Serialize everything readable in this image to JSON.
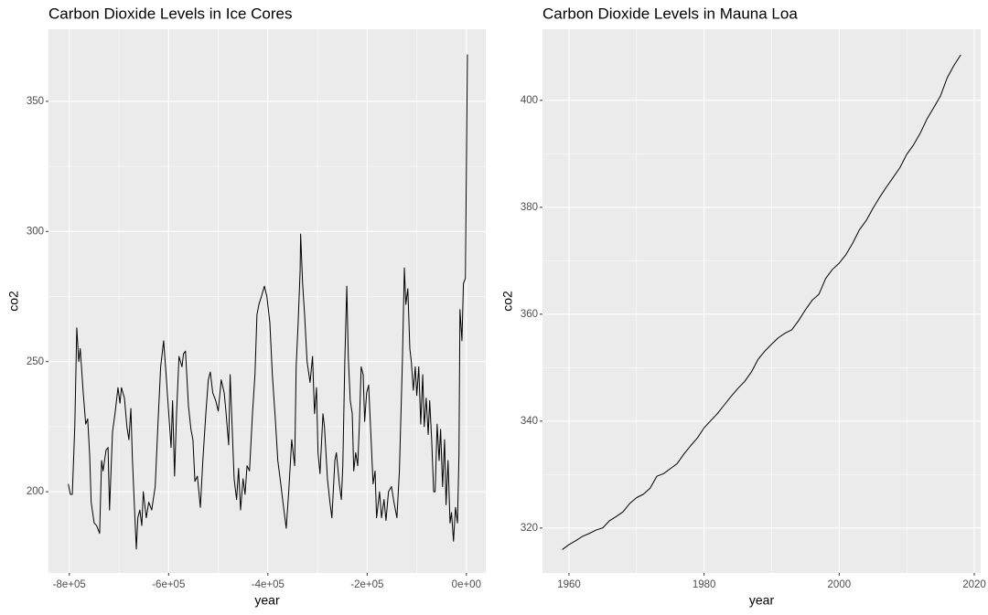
{
  "chart_data": [
    {
      "type": "line",
      "title": "Carbon Dioxide Levels in Ice Cores",
      "x_label": "year",
      "y_label": "co2",
      "color": "#000000",
      "grid": true,
      "xlim": [
        -842000,
        39000
      ],
      "ylim": [
        168.8,
        377.7
      ],
      "xticks": [
        {
          "value": -800000,
          "label": "-8e+05"
        },
        {
          "value": -600000,
          "label": "-6e+05"
        },
        {
          "value": -400000,
          "label": "-4e+05"
        },
        {
          "value": -200000,
          "label": "-2e+05"
        },
        {
          "value": 0,
          "label": "0e+00"
        }
      ],
      "yticks": [
        200,
        250,
        300,
        350
      ],
      "x": [
        -802000,
        -798000,
        -794000,
        -789000,
        -785000,
        -781000,
        -778000,
        -772000,
        -767000,
        -763000,
        -759000,
        -756000,
        -750000,
        -745000,
        -739000,
        -735000,
        -732000,
        -726000,
        -722000,
        -719000,
        -713000,
        -708000,
        -702000,
        -698000,
        -695000,
        -689000,
        -684000,
        -680000,
        -676000,
        -673000,
        -669000,
        -665000,
        -662000,
        -658000,
        -654000,
        -651000,
        -645000,
        -640000,
        -634000,
        -627000,
        -621000,
        -616000,
        -610000,
        -605000,
        -599000,
        -595000,
        -592000,
        -588000,
        -584000,
        -579000,
        -573000,
        -570000,
        -566000,
        -560000,
        -555000,
        -551000,
        -547000,
        -542000,
        -536000,
        -531000,
        -525000,
        -520000,
        -516000,
        -511000,
        -505000,
        -500000,
        -494000,
        -488000,
        -485000,
        -479000,
        -476000,
        -472000,
        -468000,
        -463000,
        -459000,
        -455000,
        -450000,
        -446000,
        -442000,
        -437000,
        -431000,
        -426000,
        -422000,
        -418000,
        -413000,
        -407000,
        -402000,
        -396000,
        -391000,
        -385000,
        -380000,
        -374000,
        -369000,
        -363000,
        -358000,
        -352000,
        -346000,
        -343000,
        -339000,
        -335000,
        -334000,
        -330000,
        -326000,
        -321000,
        -315000,
        -310000,
        -306000,
        -302000,
        -299000,
        -295000,
        -289000,
        -286000,
        -280000,
        -275000,
        -271000,
        -265000,
        -262000,
        -256000,
        -252000,
        -249000,
        -245000,
        -241000,
        -238000,
        -234000,
        -230000,
        -227000,
        -223000,
        -219000,
        -216000,
        -212000,
        -208000,
        -205000,
        -201000,
        -197000,
        -192000,
        -188000,
        -184000,
        -181000,
        -175000,
        -171000,
        -166000,
        -162000,
        -157000,
        -151000,
        -146000,
        -140000,
        -135000,
        -129000,
        -125000,
        -122000,
        -118000,
        -114000,
        -111000,
        -107000,
        -103000,
        -100000,
        -96000,
        -92000,
        -88000,
        -85000,
        -81000,
        -77000,
        -74000,
        -70000,
        -66000,
        -63000,
        -59000,
        -55000,
        -52000,
        -48000,
        -44000,
        -41000,
        -37000,
        -33000,
        -30000,
        -26000,
        -22000,
        -18000,
        -15000,
        -13000,
        -9000,
        -6000,
        -2000,
        2001
      ],
      "values": [
        203,
        199,
        199,
        225,
        263,
        250,
        255,
        238,
        226,
        228,
        214,
        196,
        188,
        187,
        184,
        212,
        208,
        216,
        217,
        193,
        223,
        230,
        240,
        234,
        240,
        236,
        225,
        220,
        232,
        213,
        195,
        178,
        190,
        193,
        187,
        200,
        190,
        196,
        193,
        202,
        228,
        248,
        258,
        245,
        228,
        217,
        235,
        206,
        230,
        252,
        248,
        253,
        254,
        233,
        224,
        220,
        204,
        206,
        194,
        212,
        230,
        243,
        246,
        238,
        235,
        231,
        243,
        238,
        232,
        218,
        245,
        225,
        205,
        197,
        209,
        193,
        205,
        199,
        210,
        208,
        230,
        245,
        268,
        272,
        275,
        279,
        275,
        265,
        245,
        228,
        212,
        203,
        195,
        186,
        200,
        220,
        210,
        248,
        265,
        285,
        299,
        280,
        268,
        250,
        242,
        252,
        230,
        240,
        215,
        207,
        230,
        225,
        205,
        196,
        190,
        212,
        215,
        203,
        197,
        210,
        250,
        279,
        252,
        235,
        230,
        208,
        215,
        210,
        224,
        248,
        245,
        227,
        238,
        241,
        220,
        203,
        208,
        190,
        200,
        190,
        197,
        189,
        200,
        202,
        196,
        190,
        208,
        250,
        286,
        272,
        278,
        255,
        250,
        239,
        248,
        237,
        248,
        226,
        245,
        225,
        236,
        222,
        235,
        220,
        200,
        200,
        226,
        212,
        224,
        202,
        220,
        195,
        212,
        188,
        192,
        181,
        194,
        188,
        214,
        270,
        258,
        280,
        282,
        368
      ]
    },
    {
      "type": "line",
      "title": "Carbon Dioxide Levels in Mauna Loa",
      "x_label": "year",
      "y_label": "co2",
      "color": "#000000",
      "grid": true,
      "xlim": [
        1956.07,
        2020.95
      ],
      "ylim": [
        311.6,
        413.3
      ],
      "xticks": [
        1960,
        1980,
        2000,
        2020
      ],
      "yticks": [
        320,
        340,
        360,
        380,
        400
      ],
      "x": [
        1959,
        1960,
        1961,
        1962,
        1963,
        1964,
        1965,
        1966,
        1967,
        1968,
        1969,
        1970,
        1971,
        1972,
        1973,
        1974,
        1975,
        1976,
        1977,
        1978,
        1979,
        1980,
        1981,
        1982,
        1983,
        1984,
        1985,
        1986,
        1987,
        1988,
        1989,
        1990,
        1991,
        1992,
        1993,
        1994,
        1995,
        1996,
        1997,
        1998,
        1999,
        2000,
        2001,
        2002,
        2003,
        2004,
        2005,
        2006,
        2007,
        2008,
        2009,
        2010,
        2011,
        2012,
        2013,
        2014,
        2015,
        2016,
        2017,
        2018
      ],
      "values": [
        315.97,
        316.91,
        317.64,
        318.45,
        318.99,
        319.62,
        320.04,
        321.38,
        322.16,
        323.04,
        324.62,
        325.68,
        326.32,
        327.45,
        329.68,
        330.18,
        331.11,
        332.04,
        333.83,
        335.4,
        336.84,
        338.75,
        340.11,
        341.45,
        343.05,
        344.65,
        346.12,
        347.42,
        349.19,
        351.57,
        353.12,
        354.39,
        355.61,
        356.45,
        357.1,
        358.83,
        360.82,
        362.61,
        363.73,
        366.7,
        368.38,
        369.55,
        371.14,
        373.28,
        375.8,
        377.52,
        379.8,
        381.9,
        383.79,
        385.6,
        387.43,
        389.9,
        391.65,
        393.85,
        396.52,
        398.65,
        400.83,
        404.24,
        406.55,
        408.52
      ]
    }
  ]
}
